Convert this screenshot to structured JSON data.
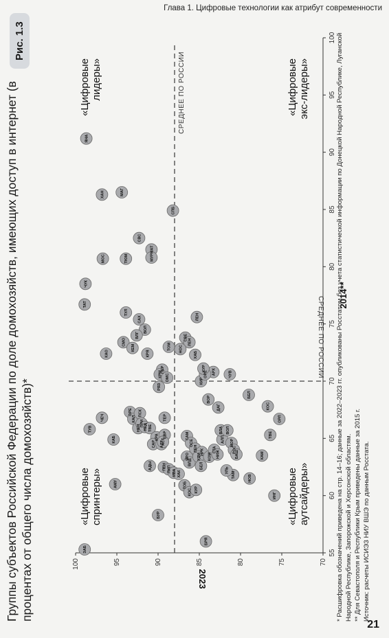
{
  "page": {
    "running_head": "Глава 1. Цифровые технологии как атрибут современности",
    "page_number": "21"
  },
  "figure": {
    "badge": "Рис. 1.3",
    "title": "Группы субъектов Российской Федерации по доле домохозяйств, имеющих доступ в интернет (в процентах от общего числа домохозяйств)*",
    "footnotes": [
      "* Расшифровка обозначений приведена на стр. 14–16; данные за 2022–2023 гг. опубликованы Росстатом без учета статистической информации по Донецкой Народной Республике, Луганской Народной Республике, Запорожской и Херсонской областям.",
      "** Для Севастополя и Республики Крым приведены данные за 2015 г.",
      "Источник: расчеты ИСИЭЗ НИУ ВШЭ по данным Росстата."
    ]
  },
  "colors": {
    "point_fill": "#a9aaad",
    "point_stroke": "#6b6b6b",
    "axis": "#333333",
    "avg_line": "#444444"
  },
  "chart_data": {
    "type": "scatter",
    "xlabel": "2014**",
    "ylabel": "2023",
    "xlim": [
      55,
      100
    ],
    "ylim": [
      70,
      100
    ],
    "xticks": [
      55,
      60,
      65,
      70,
      75,
      80,
      85,
      90,
      95,
      100
    ],
    "yticks": [
      70,
      75,
      80,
      85,
      90,
      95,
      100
    ],
    "avg_x": 70,
    "avg_y": 88,
    "avg_label_x": "СРЕДНЕЕ ПО РОССИИ",
    "avg_label_y": "СРЕДНЕЕ ПО РОССИИ",
    "quadrants": {
      "top_left": "«Цифровые спринтеры»",
      "top_right": "«Цифровые лидеры»",
      "bottom_left": "«Цифровые аутсайдеры»",
      "bottom_right": "«Цифровые экс-лидеры»"
    },
    "points": [
      {
        "label": "ЯНА",
        "x": 91.2,
        "y": 98.7
      },
      {
        "label": "ХАН",
        "x": 86.3,
        "y": 96.8
      },
      {
        "label": "МАГ",
        "x": 86.5,
        "y": 94.4
      },
      {
        "label": "ЧУК",
        "x": 78.5,
        "y": 98.8
      },
      {
        "label": "ТАТ",
        "x": 76.7,
        "y": 98.9
      },
      {
        "label": "МОС",
        "x": 80.7,
        "y": 96.7
      },
      {
        "label": "ТЮМ",
        "x": 80.7,
        "y": 93.9
      },
      {
        "label": "СВС",
        "x": 82.5,
        "y": 92.3
      },
      {
        "label": "МАТ",
        "x": 81.5,
        "y": 90.8
      },
      {
        "label": "МУР",
        "x": 80.8,
        "y": 90.8
      },
      {
        "label": "СПБ",
        "x": 84.9,
        "y": 88.2
      },
      {
        "label": "ТУЛ",
        "x": 76.0,
        "y": 93.9
      },
      {
        "label": "САХ",
        "x": 75.4,
        "y": 92.3
      },
      {
        "label": "ВОЛ",
        "x": 74.5,
        "y": 91.6
      },
      {
        "label": "КАО",
        "x": 72.4,
        "y": 96.3
      },
      {
        "label": "СМО",
        "x": 73.4,
        "y": 94.2
      },
      {
        "label": "КЕМ",
        "x": 72.9,
        "y": 93.1
      },
      {
        "label": "ВЛГ",
        "x": 74.0,
        "y": 92.6
      },
      {
        "label": "КРЯ",
        "x": 72.4,
        "y": 91.3
      },
      {
        "label": "ЛЕН",
        "x": 75.6,
        "y": 85.3
      },
      {
        "label": "СВЕ",
        "x": 73.8,
        "y": 86.7
      },
      {
        "label": "ЛЕН",
        "x": 73.4,
        "y": 86.2
      },
      {
        "label": "НОС",
        "x": 72.8,
        "y": 87.3
      },
      {
        "label": "ХАБ",
        "x": 72.3,
        "y": 85.5
      },
      {
        "label": "ТОМ",
        "x": 73.0,
        "y": 88.7
      },
      {
        "label": "ПЕР",
        "x": 71.0,
        "y": 89.5
      },
      {
        "label": "КРМ",
        "x": 70.6,
        "y": 89.8
      },
      {
        "label": "ОМС",
        "x": 70.3,
        "y": 88.9
      },
      {
        "label": "РЯЗ",
        "x": 69.5,
        "y": 89.9
      },
      {
        "label": "ЧЕЧ",
        "x": 66.8,
        "y": 96.8
      },
      {
        "label": "ТУВ",
        "x": 65.8,
        "y": 98.3
      },
      {
        "label": "КАБ",
        "x": 64.9,
        "y": 95.4
      },
      {
        "label": "ОРЕ",
        "x": 67.3,
        "y": 93.4
      },
      {
        "label": "КАЛ",
        "x": 66.7,
        "y": 93.0
      },
      {
        "label": "ПСК",
        "x": 67.2,
        "y": 92.2
      },
      {
        "label": "НЕН",
        "x": 65.9,
        "y": 92.4
      },
      {
        "label": "ПРИ",
        "x": 66.3,
        "y": 92.0
      },
      {
        "label": "НЕД",
        "x": 66.0,
        "y": 91.6
      },
      {
        "label": "ТВЕ",
        "x": 65.9,
        "y": 91.0
      },
      {
        "label": "КРА",
        "x": 65.1,
        "y": 90.2
      },
      {
        "label": "САР",
        "x": 64.5,
        "y": 90.6
      },
      {
        "label": "АДЫ",
        "x": 62.6,
        "y": 91.0
      },
      {
        "label": "АЛТ",
        "x": 64.5,
        "y": 89.6
      },
      {
        "label": "ЕВР",
        "x": 65.3,
        "y": 89.2
      },
      {
        "label": "АСТ",
        "x": 64.7,
        "y": 89.4
      },
      {
        "label": "ПЕН",
        "x": 62.5,
        "y": 89.3
      },
      {
        "label": "ЛИП",
        "x": 62.3,
        "y": 88.7
      },
      {
        "label": "ИВА",
        "x": 62.0,
        "y": 88.1
      },
      {
        "label": "ХАК",
        "x": 61.9,
        "y": 87.5
      },
      {
        "label": "АМУ",
        "x": 61.0,
        "y": 95.2
      },
      {
        "label": "БУР",
        "x": 58.3,
        "y": 90.0
      },
      {
        "label": "ЗАБ",
        "x": 55.3,
        "y": 98.9
      },
      {
        "label": "БРЯ",
        "x": 56.0,
        "y": 84.2
      },
      {
        "label": "ТОБ",
        "x": 60.9,
        "y": 86.8
      },
      {
        "label": "КОС",
        "x": 60.3,
        "y": 86.2
      },
      {
        "label": "КУР",
        "x": 60.5,
        "y": 85.4
      },
      {
        "label": "ЯРО",
        "x": 63.4,
        "y": 86.5
      },
      {
        "label": "ВЛД",
        "x": 62.9,
        "y": 86.2
      },
      {
        "label": "ТЕР",
        "x": 66.8,
        "y": 89.2
      },
      {
        "label": "САМ",
        "x": 65.2,
        "y": 86.5
      },
      {
        "label": "ОСЕ",
        "x": 64.6,
        "y": 86.0
      },
      {
        "label": "ЛЕН",
        "x": 64.1,
        "y": 85.5
      },
      {
        "label": "ИРК",
        "x": 63.8,
        "y": 84.7
      },
      {
        "label": "УДМ",
        "x": 63.4,
        "y": 85.1
      },
      {
        "label": "БЕЛ",
        "x": 62.6,
        "y": 84.8
      },
      {
        "label": "КОМ",
        "x": 63.4,
        "y": 83.8
      },
      {
        "label": "СТА",
        "x": 64.0,
        "y": 83.2
      },
      {
        "label": "НИЖ",
        "x": 63.6,
        "y": 82.8
      },
      {
        "label": "АЛП",
        "x": 64.9,
        "y": 82.2
      },
      {
        "label": "ВЛА",
        "x": 65.7,
        "y": 82.4
      },
      {
        "label": "ВОЛ",
        "x": 65.7,
        "y": 81.6
      },
      {
        "label": "МОР",
        "x": 64.6,
        "y": 81.1
      },
      {
        "label": "РОС",
        "x": 64.0,
        "y": 80.8
      },
      {
        "label": "БАШ",
        "x": 63.6,
        "y": 80.5
      },
      {
        "label": "ТАМ",
        "x": 61.8,
        "y": 80.9
      },
      {
        "label": "УЛЬ",
        "x": 62.2,
        "y": 81.7
      },
      {
        "label": "НОВ",
        "x": 61.5,
        "y": 78.9
      },
      {
        "label": "КАМ",
        "x": 63.5,
        "y": 77.4
      },
      {
        "label": "ТВЕ",
        "x": 65.3,
        "y": 76.4
      },
      {
        "label": "ОРЛ",
        "x": 66.7,
        "y": 75.3
      },
      {
        "label": "КОС",
        "x": 67.8,
        "y": 76.7
      },
      {
        "label": "БЕЛ",
        "x": 68.8,
        "y": 79.0
      },
      {
        "label": "ЧУВ",
        "x": 70.6,
        "y": 81.3
      },
      {
        "label": "ДАГ",
        "x": 67.7,
        "y": 82.7
      },
      {
        "label": "АРХ",
        "x": 70.8,
        "y": 83.3
      },
      {
        "label": "КИР",
        "x": 70.0,
        "y": 84.8
      },
      {
        "label": "ВОР",
        "x": 68.4,
        "y": 83.9
      },
      {
        "label": "ОРЕ",
        "x": 70.6,
        "y": 84.3
      },
      {
        "label": "КУР",
        "x": 71.1,
        "y": 84.5
      },
      {
        "label": "ИНГ",
        "x": 60.0,
        "y": 75.9
      }
    ]
  }
}
